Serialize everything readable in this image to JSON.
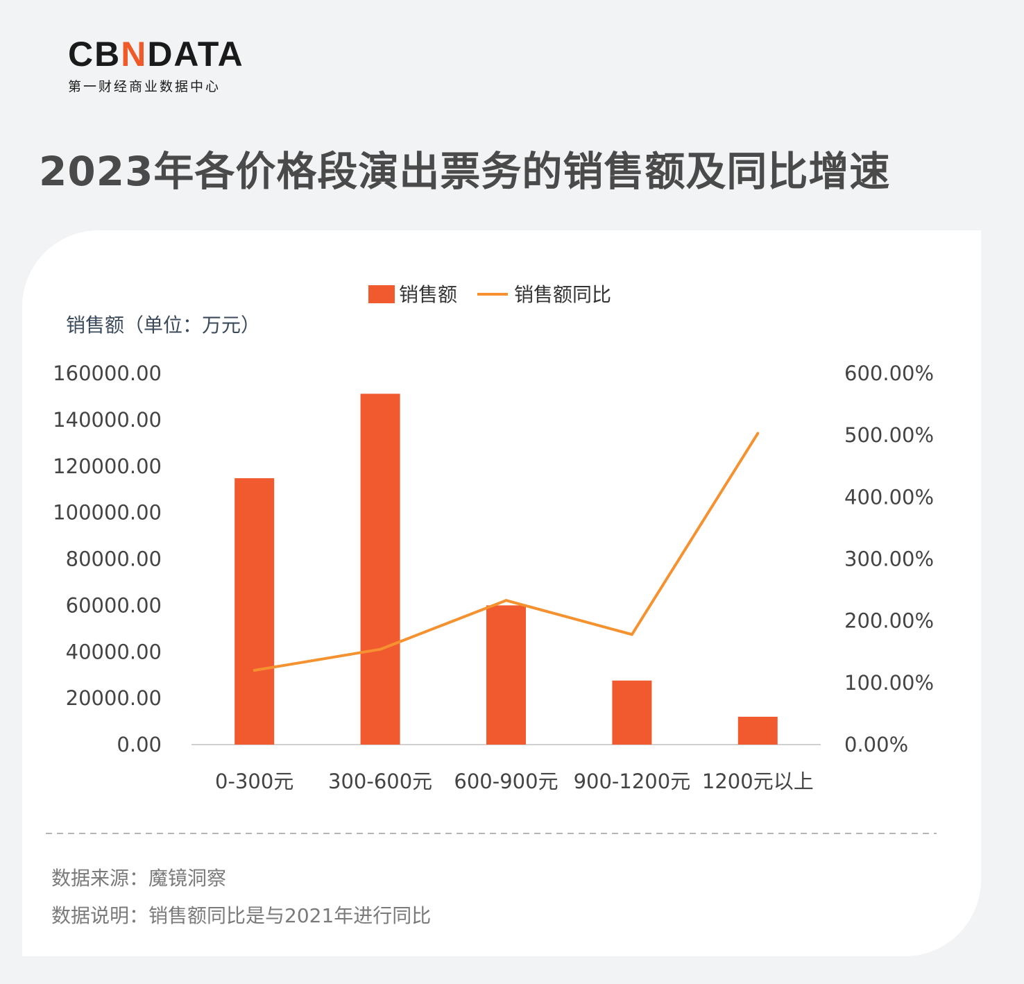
{
  "brand": {
    "logo_pre": "CB",
    "logo_accent": "N",
    "logo_post": "DATA",
    "subtitle": "第一财经商业数据中心",
    "accent_color": "#f05a28"
  },
  "title": "2023年各价格段演出票务的销售额及同比增速",
  "chart_data": {
    "type": "bar",
    "title": "2023年各价格段演出票务的销售额及同比增速",
    "categories": [
      "0-300元",
      "300-600元",
      "600-900元",
      "900-1200元",
      "1200元以上"
    ],
    "series": [
      {
        "name": "销售额",
        "type": "bar",
        "axis": "left",
        "color": "#f05a2e",
        "values": [
          114800,
          151200,
          60000,
          27600,
          12000
        ]
      },
      {
        "name": "销售额同比",
        "type": "line",
        "axis": "right",
        "color": "#f5922f",
        "values": [
          1.2,
          1.54,
          2.33,
          1.78,
          5.03
        ]
      }
    ],
    "ylabel": "销售额（单位：万元）",
    "ylim": [
      0,
      160000
    ],
    "yticks": [
      "0.00",
      "20000.00",
      "40000.00",
      "60000.00",
      "80000.00",
      "100000.00",
      "120000.00",
      "140000.00",
      "160000.00"
    ],
    "y2lim": [
      0,
      6
    ],
    "y2ticks": [
      "0.00%",
      "100.00%",
      "200.00%",
      "300.00%",
      "400.00%",
      "500.00%",
      "600.00%"
    ],
    "legend": "top-center",
    "grid": false
  },
  "footer": {
    "source": "数据来源：魔镜洞察",
    "note": "数据说明：销售额同比是与2021年进行同比"
  }
}
